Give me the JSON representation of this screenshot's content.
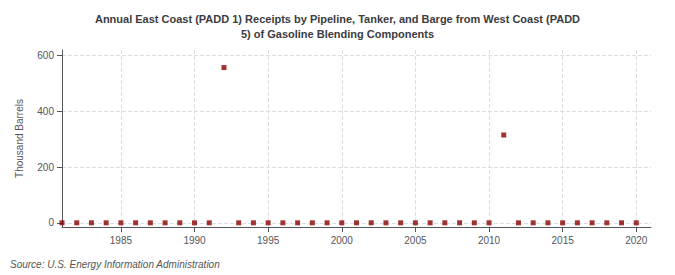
{
  "chart_data": {
    "type": "scatter",
    "title": "Annual East Coast (PADD 1) Receipts by Pipeline, Tanker, and Barge from West Coast (PADD\n5) of Gasoline Blending Components",
    "ylabel": "Thousand Barrels",
    "source": "Source: U.S. Energy Information Administration",
    "color": "#8b0000",
    "marker": "square",
    "grid": true,
    "xlim": [
      1981,
      2021
    ],
    "ylim": [
      -15,
      620
    ],
    "xticks": [
      1985,
      1990,
      1995,
      2000,
      2005,
      2010,
      2015,
      2020
    ],
    "yticks": [
      0,
      200,
      400,
      600
    ],
    "x": [
      1981,
      1982,
      1983,
      1984,
      1985,
      1986,
      1987,
      1988,
      1989,
      1990,
      1991,
      1992,
      1993,
      1994,
      1995,
      1996,
      1997,
      1998,
      1999,
      2000,
      2001,
      2002,
      2003,
      2004,
      2005,
      2006,
      2007,
      2008,
      2009,
      2010,
      2011,
      2012,
      2013,
      2014,
      2015,
      2016,
      2017,
      2018,
      2019,
      2020
    ],
    "values": [
      0,
      0,
      0,
      0,
      0,
      0,
      0,
      0,
      0,
      0,
      0,
      557,
      0,
      0,
      0,
      0,
      0,
      0,
      0,
      0,
      0,
      0,
      0,
      0,
      0,
      0,
      0,
      0,
      0,
      0,
      315,
      0,
      0,
      0,
      0,
      0,
      0,
      0,
      0,
      0
    ]
  }
}
